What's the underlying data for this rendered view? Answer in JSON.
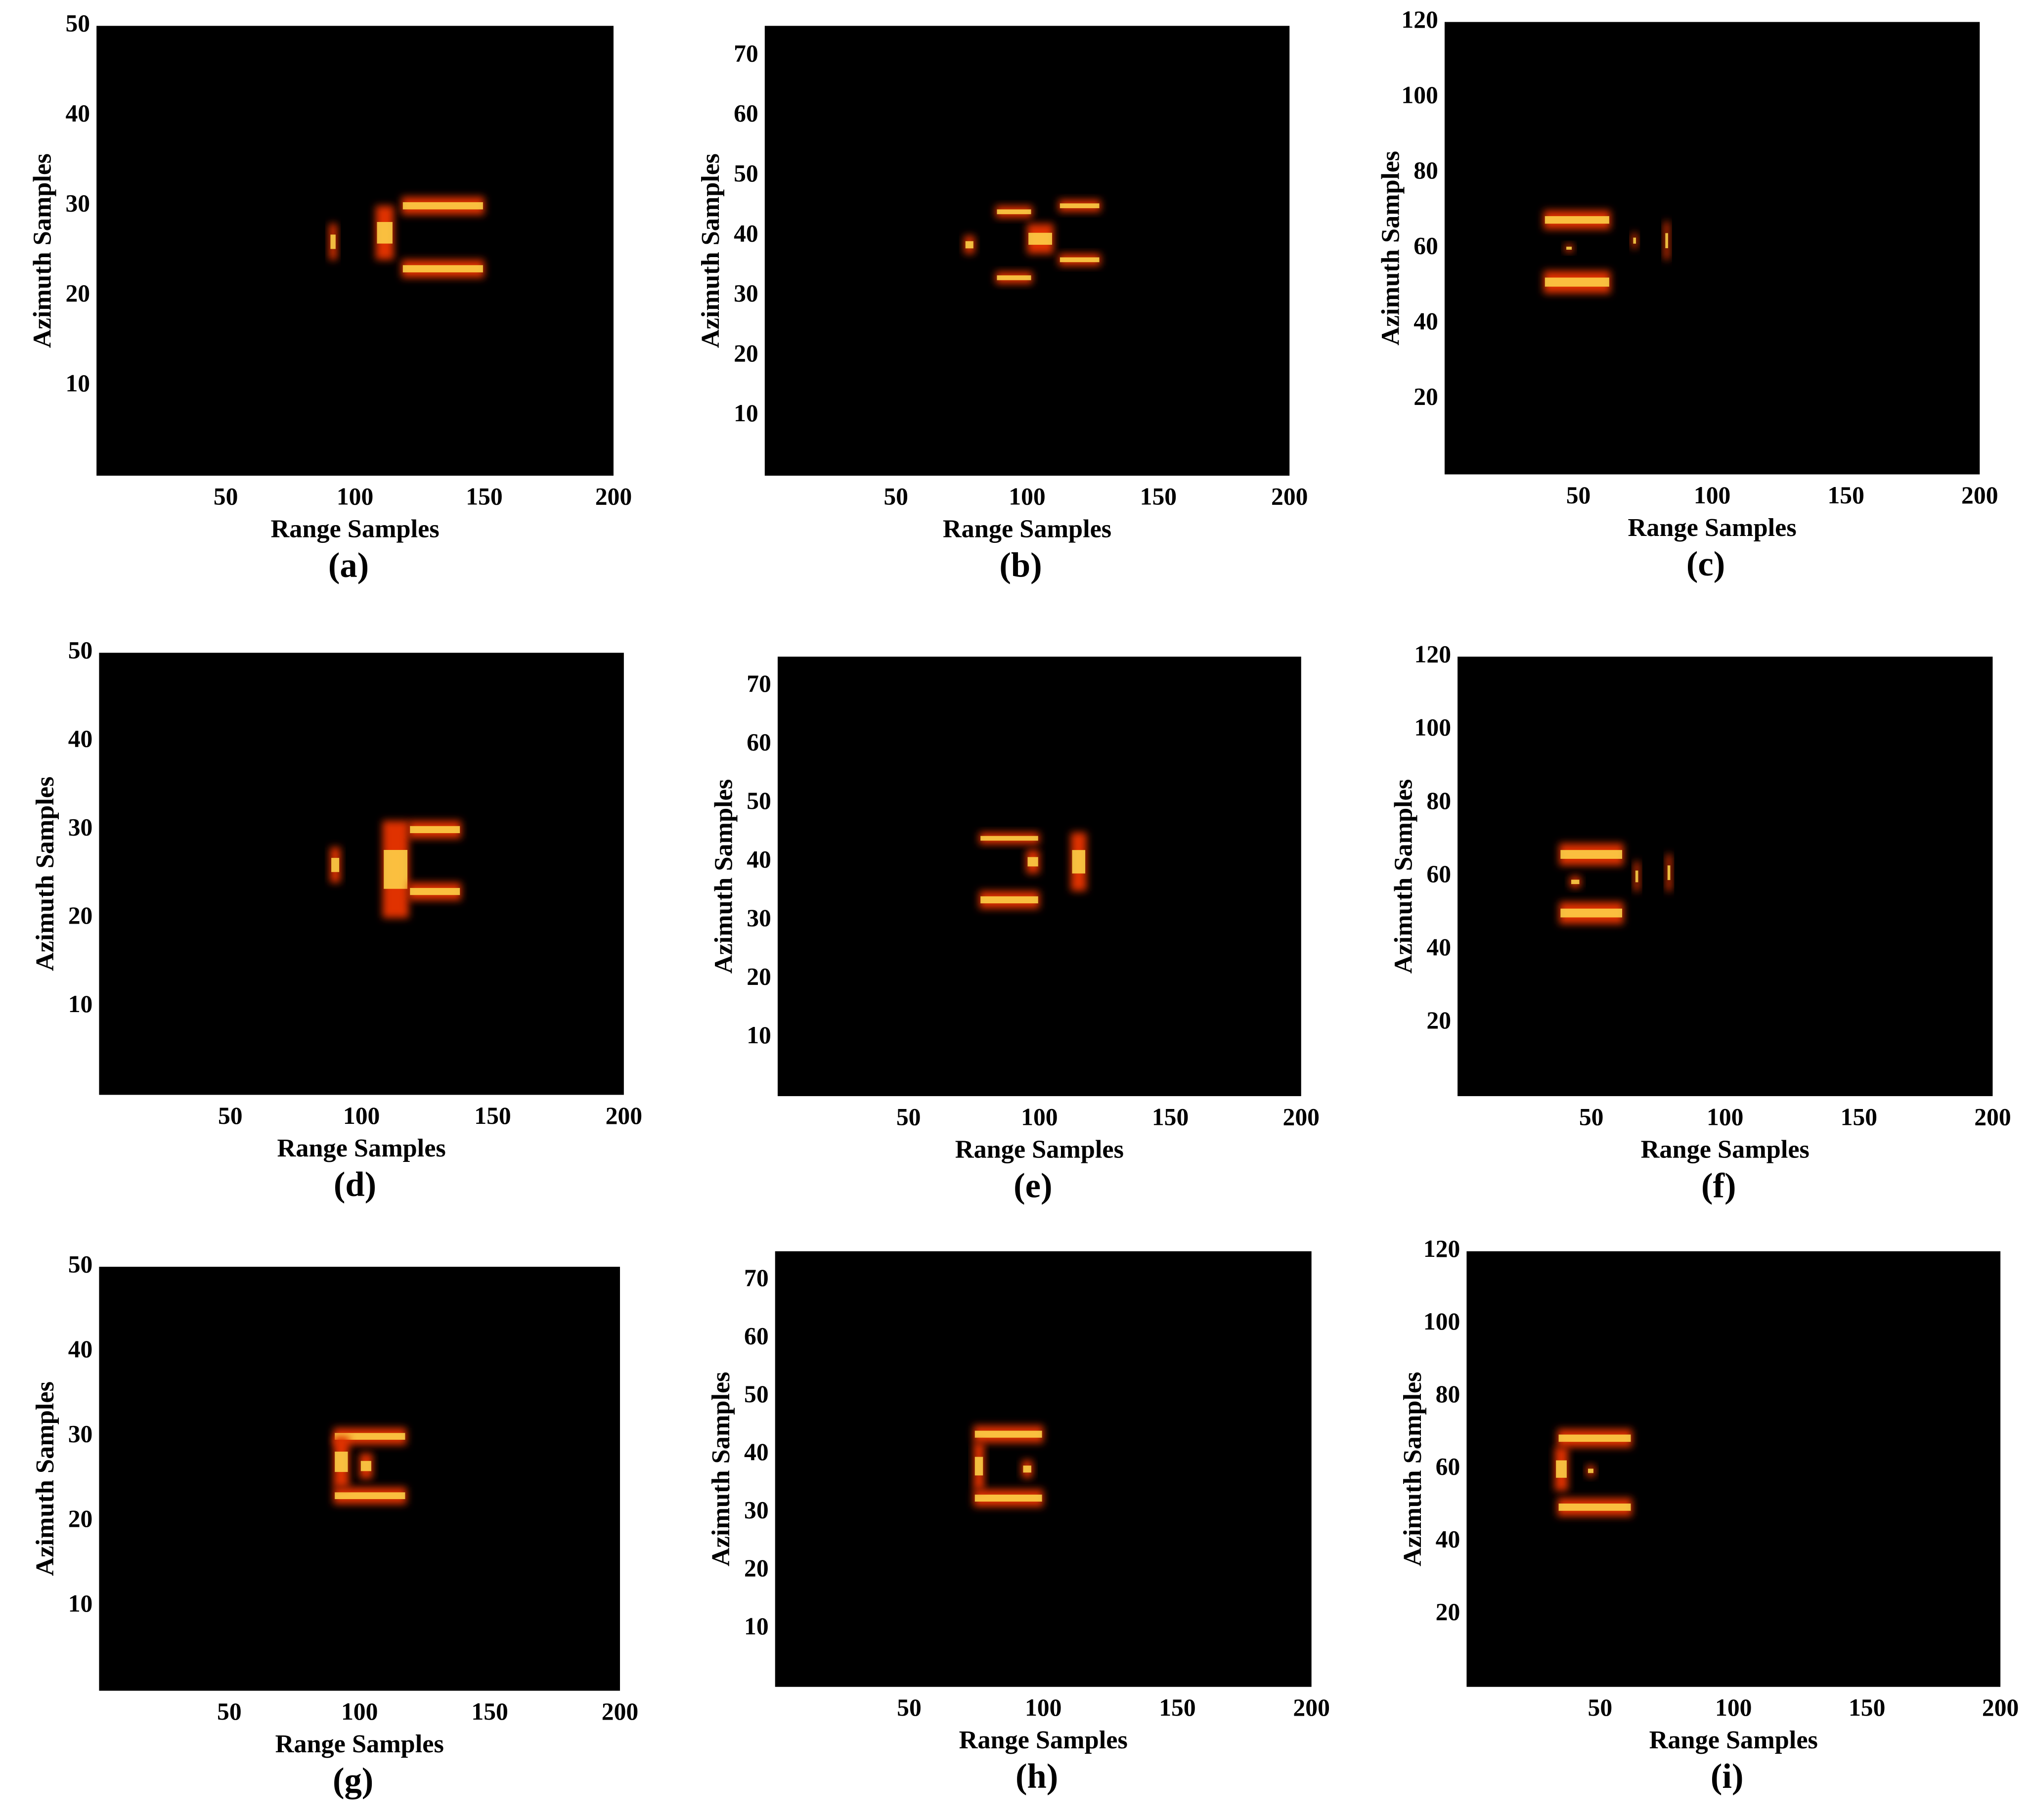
{
  "chart_data": [
    {
      "type": "heatmap",
      "caption": "(a)",
      "xlabel": "Range Samples",
      "ylabel": "Azimuth Samples",
      "xlim": [
        0,
        200
      ],
      "ylim": [
        0,
        50
      ],
      "xticks": [
        50,
        100,
        150,
        200
      ],
      "yticks": [
        10,
        20,
        30,
        40,
        50
      ],
      "background": "#000000",
      "spot_color": "#e03000",
      "core_color": "#ffd84a",
      "spots": [
        {
          "x": [
            90,
            93
          ],
          "y": [
            24,
            28
          ]
        },
        {
          "x": [
            108,
            115
          ],
          "y": [
            24,
            30
          ]
        },
        {
          "x": [
            118,
            150
          ],
          "y": [
            29,
            31
          ]
        },
        {
          "x": [
            118,
            150
          ],
          "y": [
            22,
            24
          ]
        }
      ]
    },
    {
      "type": "heatmap",
      "caption": "(b)",
      "xlabel": "Range Samples",
      "ylabel": "Azimuth Samples",
      "xlim": [
        0,
        200
      ],
      "ylim": [
        0,
        75
      ],
      "xticks": [
        50,
        100,
        150,
        200
      ],
      "yticks": [
        10,
        20,
        30,
        40,
        50,
        60,
        70
      ],
      "background": "#000000",
      "spot_color": "#e03000",
      "core_color": "#ffd84a",
      "spots": [
        {
          "x": [
            76,
            80
          ],
          "y": [
            37,
            40
          ]
        },
        {
          "x": [
            88,
            102
          ],
          "y": [
            43,
            45
          ]
        },
        {
          "x": [
            88,
            102
          ],
          "y": [
            32,
            34
          ]
        },
        {
          "x": [
            100,
            110
          ],
          "y": [
            37,
            42
          ]
        },
        {
          "x": [
            112,
            128
          ],
          "y": [
            44,
            46
          ]
        },
        {
          "x": [
            112,
            128
          ],
          "y": [
            35,
            37
          ]
        }
      ]
    },
    {
      "type": "heatmap",
      "caption": "(c)",
      "xlabel": "Range Samples",
      "ylabel": "Azimuth Samples",
      "xlim": [
        0,
        200
      ],
      "ylim": [
        0,
        120
      ],
      "xticks": [
        50,
        100,
        150,
        200
      ],
      "yticks": [
        20,
        40,
        60,
        80,
        100,
        120
      ],
      "background": "#000000",
      "spot_color": "#e03000",
      "core_color": "#ffd84a",
      "spots": [
        {
          "x": [
            37,
            62
          ],
          "y": [
            65,
            70
          ]
        },
        {
          "x": [
            37,
            62
          ],
          "y": [
            48,
            54
          ]
        },
        {
          "x": [
            45,
            48
          ],
          "y": [
            59,
            61
          ]
        },
        {
          "x": [
            70,
            72
          ],
          "y": [
            60,
            64
          ]
        },
        {
          "x": [
            82,
            84
          ],
          "y": [
            57,
            67
          ]
        }
      ]
    },
    {
      "type": "heatmap",
      "caption": "(d)",
      "xlabel": "Range Samples",
      "ylabel": "Azimuth Samples",
      "xlim": [
        0,
        200
      ],
      "ylim": [
        0,
        50
      ],
      "xticks": [
        50,
        100,
        150,
        200
      ],
      "yticks": [
        10,
        20,
        30,
        40,
        50
      ],
      "background": "#000000",
      "spot_color": "#e03000",
      "core_color": "#ffd84a",
      "spots": [
        {
          "x": [
            88,
            92
          ],
          "y": [
            24,
            28
          ]
        },
        {
          "x": [
            108,
            118
          ],
          "y": [
            20,
            31
          ]
        },
        {
          "x": [
            118,
            138
          ],
          "y": [
            29,
            31
          ]
        },
        {
          "x": [
            118,
            138
          ],
          "y": [
            22,
            24
          ]
        }
      ]
    },
    {
      "type": "heatmap",
      "caption": "(e)",
      "xlabel": "Range Samples",
      "ylabel": "Azimuth Samples",
      "xlim": [
        0,
        200
      ],
      "ylim": [
        0,
        75
      ],
      "xticks": [
        50,
        100,
        150,
        200
      ],
      "yticks": [
        10,
        20,
        30,
        40,
        50,
        60,
        70
      ],
      "background": "#000000",
      "spot_color": "#e03000",
      "core_color": "#ffd84a",
      "spots": [
        {
          "x": [
            77,
            100
          ],
          "y": [
            43,
            45
          ]
        },
        {
          "x": [
            77,
            100
          ],
          "y": [
            32,
            35
          ]
        },
        {
          "x": [
            95,
            100
          ],
          "y": [
            38,
            42
          ]
        },
        {
          "x": [
            112,
            118
          ],
          "y": [
            35,
            45
          ]
        }
      ]
    },
    {
      "type": "heatmap",
      "caption": "(f)",
      "xlabel": "Range Samples",
      "ylabel": "Azimuth Samples",
      "xlim": [
        0,
        200
      ],
      "ylim": [
        0,
        120
      ],
      "xticks": [
        50,
        100,
        150,
        200
      ],
      "yticks": [
        20,
        40,
        60,
        80,
        100,
        120
      ],
      "background": "#000000",
      "spot_color": "#e03000",
      "core_color": "#ffd84a",
      "spots": [
        {
          "x": [
            38,
            62
          ],
          "y": [
            63,
            69
          ]
        },
        {
          "x": [
            38,
            62
          ],
          "y": [
            47,
            53
          ]
        },
        {
          "x": [
            42,
            46
          ],
          "y": [
            57,
            60
          ]
        },
        {
          "x": [
            66,
            68
          ],
          "y": [
            56,
            64
          ]
        },
        {
          "x": [
            78,
            80
          ],
          "y": [
            56,
            66
          ]
        }
      ]
    },
    {
      "type": "heatmap",
      "caption": "(g)",
      "xlabel": "Range Samples",
      "ylabel": "Azimuth Samples",
      "xlim": [
        0,
        200
      ],
      "ylim": [
        0,
        50
      ],
      "xticks": [
        50,
        100,
        150,
        200
      ],
      "yticks": [
        10,
        20,
        30,
        40,
        50
      ],
      "background": "#000000",
      "spot_color": "#e03000",
      "core_color": "#ffd84a",
      "spots": [
        {
          "x": [
            90,
            118
          ],
          "y": [
            29,
            31
          ]
        },
        {
          "x": [
            90,
            118
          ],
          "y": [
            22,
            24
          ]
        },
        {
          "x": [
            90,
            96
          ],
          "y": [
            24,
            30
          ]
        },
        {
          "x": [
            100,
            105
          ],
          "y": [
            25,
            28
          ]
        }
      ]
    },
    {
      "type": "heatmap",
      "caption": "(h)",
      "xlabel": "Range Samples",
      "ylabel": "Azimuth Samples",
      "xlim": [
        0,
        200
      ],
      "ylim": [
        0,
        75
      ],
      "xticks": [
        50,
        100,
        150,
        200
      ],
      "yticks": [
        10,
        20,
        30,
        40,
        50,
        60,
        70
      ],
      "background": "#000000",
      "spot_color": "#e03000",
      "core_color": "#ffd84a",
      "spots": [
        {
          "x": [
            74,
            100
          ],
          "y": [
            42,
            45
          ]
        },
        {
          "x": [
            74,
            100
          ],
          "y": [
            31,
            34
          ]
        },
        {
          "x": [
            74,
            78
          ],
          "y": [
            34,
            42
          ]
        },
        {
          "x": [
            92,
            96
          ],
          "y": [
            36,
            39
          ]
        }
      ]
    },
    {
      "type": "heatmap",
      "caption": "(i)",
      "xlabel": "Range Samples",
      "ylabel": "Azimuth Samples",
      "xlim": [
        0,
        200
      ],
      "ylim": [
        0,
        120
      ],
      "xticks": [
        50,
        100,
        150,
        200
      ],
      "yticks": [
        20,
        40,
        60,
        80,
        100,
        120
      ],
      "background": "#000000",
      "spot_color": "#e03000",
      "core_color": "#ffd84a",
      "spots": [
        {
          "x": [
            34,
            62
          ],
          "y": [
            66,
            71
          ]
        },
        {
          "x": [
            34,
            62
          ],
          "y": [
            47,
            52
          ]
        },
        {
          "x": [
            33,
            38
          ],
          "y": [
            54,
            66
          ]
        },
        {
          "x": [
            45,
            48
          ],
          "y": [
            58,
            61
          ]
        }
      ]
    }
  ]
}
